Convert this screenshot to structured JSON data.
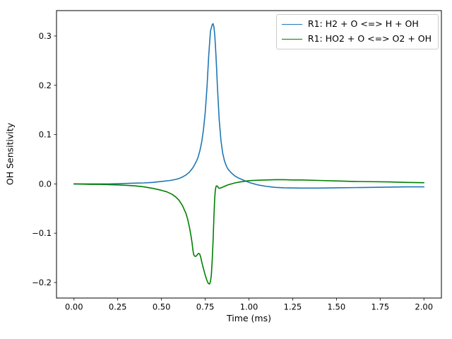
{
  "chart_data": {
    "type": "line",
    "title": "",
    "xlabel": "Time (ms)",
    "ylabel": "OH Sensitivity",
    "xlim": [
      -0.1,
      2.1
    ],
    "ylim": [
      -0.2315,
      0.3515
    ],
    "grid": false,
    "legend_position": "upper right",
    "xticks": {
      "values": [
        0.0,
        0.25,
        0.5,
        0.75,
        1.0,
        1.25,
        1.5,
        1.75,
        2.0
      ],
      "labels": [
        "0.00",
        "0.25",
        "0.50",
        "0.75",
        "1.00",
        "1.25",
        "1.50",
        "1.75",
        "2.00"
      ]
    },
    "yticks": {
      "values": [
        -0.2,
        -0.1,
        0.0,
        0.1,
        0.2,
        0.3
      ],
      "labels": [
        "−0.2",
        "−0.1",
        "0.0",
        "0.1",
        "0.2",
        "0.3"
      ]
    },
    "series": [
      {
        "name": "R1: H2 + O <=> H + OH",
        "color": "#1f77b4",
        "points": [
          [
            0.0,
            0.0
          ],
          [
            0.05,
            0.0
          ],
          [
            0.1,
            0.0
          ],
          [
            0.15,
            0.0
          ],
          [
            0.2,
            0.0
          ],
          [
            0.25,
            0.0005
          ],
          [
            0.3,
            0.001
          ],
          [
            0.35,
            0.0015
          ],
          [
            0.4,
            0.002
          ],
          [
            0.45,
            0.003
          ],
          [
            0.5,
            0.005
          ],
          [
            0.55,
            0.007
          ],
          [
            0.58,
            0.009
          ],
          [
            0.6,
            0.011
          ],
          [
            0.62,
            0.014
          ],
          [
            0.64,
            0.018
          ],
          [
            0.66,
            0.024
          ],
          [
            0.68,
            0.033
          ],
          [
            0.7,
            0.046
          ],
          [
            0.71,
            0.055
          ],
          [
            0.72,
            0.068
          ],
          [
            0.73,
            0.085
          ],
          [
            0.74,
            0.11
          ],
          [
            0.75,
            0.145
          ],
          [
            0.76,
            0.195
          ],
          [
            0.77,
            0.26
          ],
          [
            0.78,
            0.31
          ],
          [
            0.79,
            0.323
          ],
          [
            0.795,
            0.325
          ],
          [
            0.8,
            0.318
          ],
          [
            0.805,
            0.3
          ],
          [
            0.81,
            0.27
          ],
          [
            0.815,
            0.235
          ],
          [
            0.82,
            0.195
          ],
          [
            0.83,
            0.13
          ],
          [
            0.84,
            0.088
          ],
          [
            0.85,
            0.062
          ],
          [
            0.86,
            0.047
          ],
          [
            0.87,
            0.037
          ],
          [
            0.88,
            0.03
          ],
          [
            0.9,
            0.022
          ],
          [
            0.92,
            0.016
          ],
          [
            0.94,
            0.012
          ],
          [
            0.96,
            0.009
          ],
          [
            0.98,
            0.006
          ],
          [
            1.0,
            0.003
          ],
          [
            1.02,
            0.001
          ],
          [
            1.05,
            -0.002
          ],
          [
            1.1,
            -0.005
          ],
          [
            1.15,
            -0.007
          ],
          [
            1.2,
            -0.008
          ],
          [
            1.3,
            -0.0085
          ],
          [
            1.4,
            -0.0085
          ],
          [
            1.5,
            -0.008
          ],
          [
            1.6,
            -0.0075
          ],
          [
            1.7,
            -0.007
          ],
          [
            1.8,
            -0.0065
          ],
          [
            1.9,
            -0.006
          ],
          [
            2.0,
            -0.006
          ]
        ]
      },
      {
        "name": "R1: HO2 + O <=> O2 + OH",
        "color": "#008000",
        "points": [
          [
            0.0,
            0.0
          ],
          [
            0.05,
            -0.0005
          ],
          [
            0.1,
            -0.001
          ],
          [
            0.15,
            -0.001
          ],
          [
            0.2,
            -0.0015
          ],
          [
            0.25,
            -0.002
          ],
          [
            0.3,
            -0.003
          ],
          [
            0.35,
            -0.004
          ],
          [
            0.4,
            -0.006
          ],
          [
            0.45,
            -0.009
          ],
          [
            0.5,
            -0.013
          ],
          [
            0.53,
            -0.016
          ],
          [
            0.56,
            -0.021
          ],
          [
            0.58,
            -0.026
          ],
          [
            0.6,
            -0.033
          ],
          [
            0.62,
            -0.044
          ],
          [
            0.64,
            -0.06
          ],
          [
            0.65,
            -0.072
          ],
          [
            0.66,
            -0.088
          ],
          [
            0.67,
            -0.108
          ],
          [
            0.675,
            -0.12
          ],
          [
            0.68,
            -0.135
          ],
          [
            0.684,
            -0.143
          ],
          [
            0.688,
            -0.146
          ],
          [
            0.694,
            -0.147
          ],
          [
            0.7,
            -0.146
          ],
          [
            0.706,
            -0.143
          ],
          [
            0.712,
            -0.141
          ],
          [
            0.718,
            -0.142
          ],
          [
            0.724,
            -0.148
          ],
          [
            0.73,
            -0.158
          ],
          [
            0.74,
            -0.172
          ],
          [
            0.75,
            -0.185
          ],
          [
            0.76,
            -0.196
          ],
          [
            0.768,
            -0.202
          ],
          [
            0.775,
            -0.203
          ],
          [
            0.78,
            -0.198
          ],
          [
            0.785,
            -0.185
          ],
          [
            0.79,
            -0.155
          ],
          [
            0.795,
            -0.115
          ],
          [
            0.8,
            -0.065
          ],
          [
            0.804,
            -0.03
          ],
          [
            0.808,
            -0.012
          ],
          [
            0.812,
            -0.005
          ],
          [
            0.816,
            -0.004
          ],
          [
            0.82,
            -0.005
          ],
          [
            0.826,
            -0.008
          ],
          [
            0.832,
            -0.009
          ],
          [
            0.84,
            -0.008
          ],
          [
            0.86,
            -0.005
          ],
          [
            0.88,
            -0.002
          ],
          [
            0.9,
            0.0
          ],
          [
            0.92,
            0.002
          ],
          [
            0.95,
            0.004
          ],
          [
            0.98,
            0.0055
          ],
          [
            1.0,
            0.0065
          ],
          [
            1.05,
            0.0075
          ],
          [
            1.1,
            0.008
          ],
          [
            1.15,
            0.0085
          ],
          [
            1.2,
            0.0085
          ],
          [
            1.25,
            0.008
          ],
          [
            1.3,
            0.008
          ],
          [
            1.4,
            0.007
          ],
          [
            1.5,
            0.006
          ],
          [
            1.6,
            0.005
          ],
          [
            1.7,
            0.0045
          ],
          [
            1.8,
            0.004
          ],
          [
            1.9,
            0.003
          ],
          [
            2.0,
            0.0025
          ]
        ]
      }
    ]
  }
}
